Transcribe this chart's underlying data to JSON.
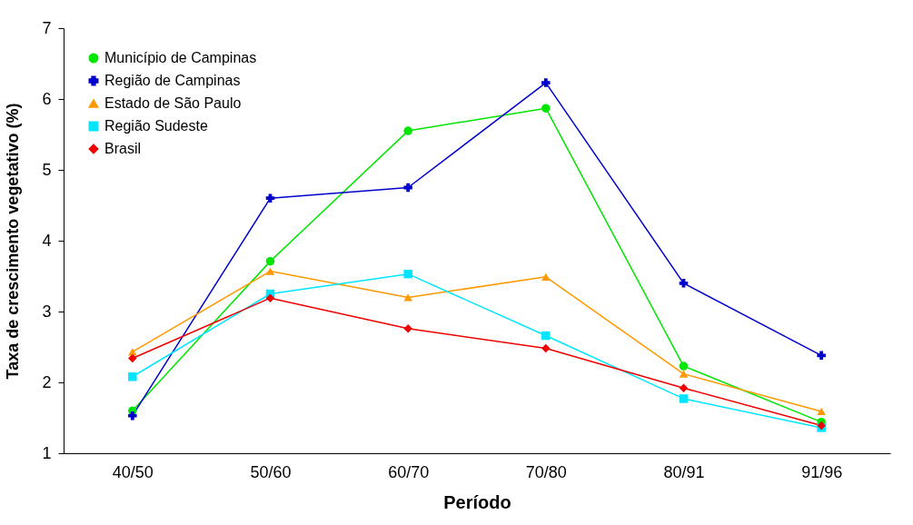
{
  "chart_data": {
    "type": "line",
    "xlabel": "Período",
    "ylabel": "Taxa de crescimento vegetativo (%)",
    "categories": [
      "40/50",
      "50/60",
      "60/70",
      "70/80",
      "80/91",
      "91/96"
    ],
    "ylim": [
      1,
      7
    ],
    "yticks": [
      1,
      2,
      3,
      4,
      5,
      6,
      7
    ],
    "grid": false,
    "legend": "top left",
    "line_style": "solid",
    "series": [
      {
        "name": "Município de Campinas",
        "color": "#00e600",
        "marker": "circle",
        "values": [
          1.6,
          3.71,
          5.55,
          5.87,
          2.23,
          1.44
        ]
      },
      {
        "name": "Região de Campinas",
        "color": "#0000cc",
        "marker": "cross",
        "values": [
          1.53,
          4.6,
          4.75,
          6.23,
          3.4,
          2.38
        ]
      },
      {
        "name": "Estado de São Paulo",
        "color": "#ff9900",
        "marker": "triangle",
        "values": [
          2.43,
          3.57,
          3.2,
          3.49,
          2.12,
          1.59
        ]
      },
      {
        "name": " Região Sudeste",
        "color": "#00e5ff",
        "marker": "square",
        "values": [
          2.08,
          3.25,
          3.53,
          2.66,
          1.77,
          1.36
        ]
      },
      {
        "name": "Brasil",
        "color": "#ee0000",
        "marker": "diamond",
        "values": [
          2.34,
          3.19,
          2.76,
          2.48,
          1.92,
          1.39
        ]
      }
    ]
  }
}
